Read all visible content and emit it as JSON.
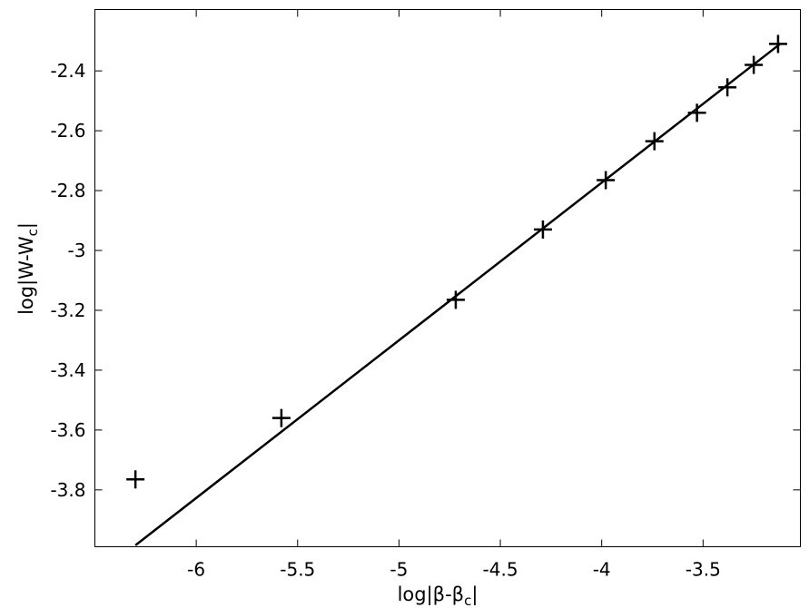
{
  "chart_data": {
    "type": "scatter",
    "title": "",
    "xlabel": "log|β-β",
    "xlabel_sub": "c",
    "xlabel_suffix": "|",
    "ylabel": "log|W-W",
    "ylabel_sub": "c",
    "ylabel_suffix": "|",
    "xlim": [
      -6.5,
      -3.02
    ],
    "ylim": [
      -3.99,
      -2.195
    ],
    "xticks": [
      -6,
      -5.5,
      -5,
      -4.5,
      -4,
      -3.5
    ],
    "xtick_labels": [
      "-6",
      "-5.5",
      "-5",
      "-4.5",
      "-4",
      "-3.5"
    ],
    "yticks": [
      -3.8,
      -3.6,
      -3.4,
      -3.2,
      -3.0,
      -2.8,
      -2.6,
      -2.4
    ],
    "ytick_labels": [
      "-3.8",
      "-3.6",
      "-3.4",
      "-3.2",
      "-3",
      "-2.8",
      "-2.6",
      "-2.4"
    ],
    "grid": false,
    "series": [
      {
        "marker": "plus",
        "color": "#000000",
        "x": [
          -6.3,
          -5.58,
          -4.72,
          -4.29,
          -3.98,
          -3.74,
          -3.53,
          -3.38,
          -3.25,
          -3.13
        ],
        "y": [
          -3.765,
          -3.56,
          -3.165,
          -2.93,
          -2.765,
          -2.635,
          -2.54,
          -2.455,
          -2.38,
          -2.31
        ]
      },
      {
        "kind": "fit-line",
        "color": "#000000",
        "x": [
          -6.3,
          -3.12
        ],
        "y": [
          -3.985,
          -2.31
        ]
      }
    ]
  }
}
